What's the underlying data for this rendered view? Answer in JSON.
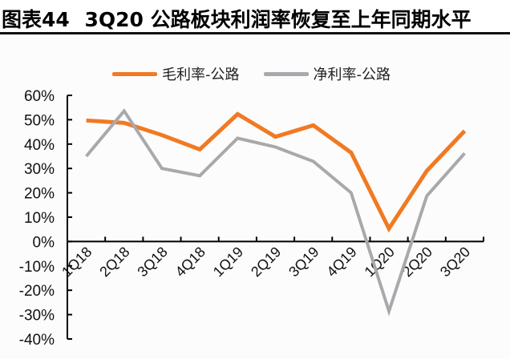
{
  "header": {
    "figure_label": "图表44",
    "title": "3Q20 公路板块利润率恢复至上年同期水平"
  },
  "legend": [
    {
      "label": "毛利率-公路",
      "color": "#f07a23"
    },
    {
      "label": "净利率-公路",
      "color": "#a9a9ad"
    }
  ],
  "chart_data": {
    "type": "line",
    "title": "3Q20 公路板块利润率恢复至上年同期水平",
    "xlabel": "",
    "ylabel": "",
    "categories": [
      "1Q18",
      "2Q18",
      "3Q18",
      "4Q18",
      "1Q19",
      "2Q19",
      "3Q19",
      "4Q19",
      "1Q20",
      "2Q20",
      "3Q20"
    ],
    "series": [
      {
        "name": "毛利率-公路",
        "color": "#f07a23",
        "values": [
          49.7,
          48.7,
          43.7,
          37.8,
          52.3,
          43.0,
          47.7,
          36.5,
          5.3,
          29.0,
          45.4
        ]
      },
      {
        "name": "净利率-公路",
        "color": "#a9a9ad",
        "values": [
          35.0,
          53.6,
          30.0,
          27.0,
          42.4,
          38.8,
          32.9,
          20.0,
          -28.6,
          18.7,
          36.2
        ]
      }
    ],
    "ylim": [
      -40,
      60
    ],
    "yticks": [
      "60%",
      "50%",
      "40%",
      "30%",
      "20%",
      "10%",
      "0%",
      "-10%",
      "-20%",
      "-30%",
      "-40%"
    ],
    "grid": false,
    "legend_position": "top"
  }
}
